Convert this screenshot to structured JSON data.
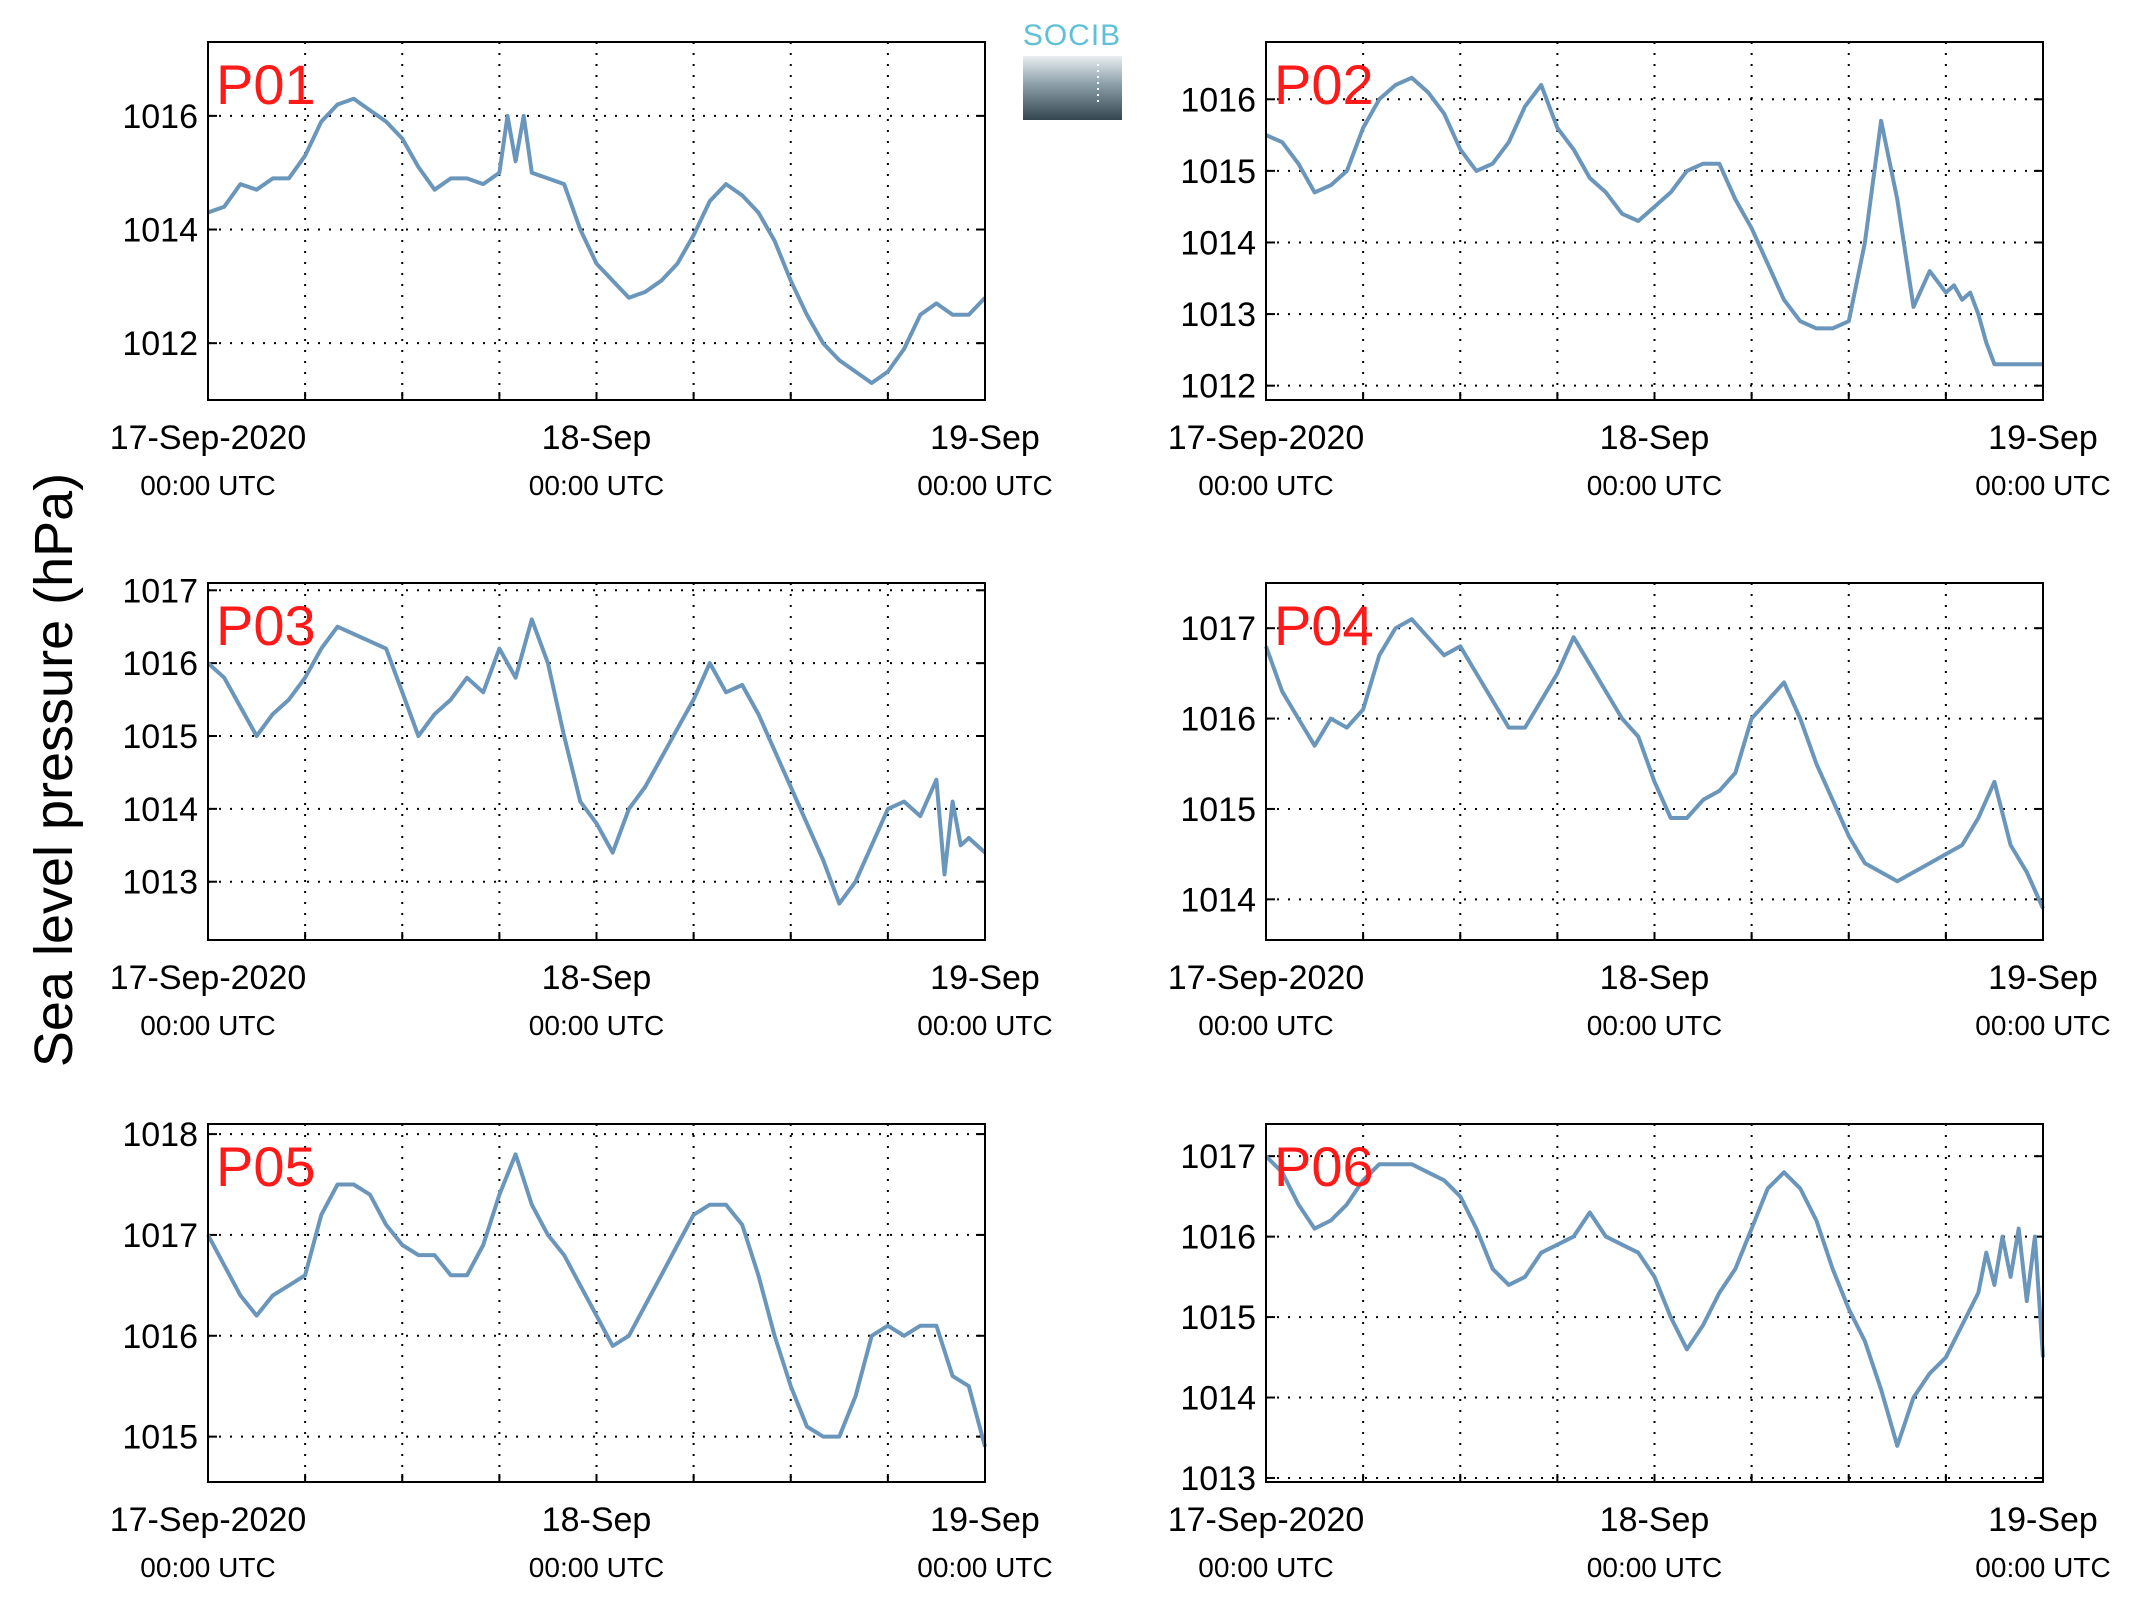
{
  "figure": {
    "ylabel": "Sea level pressure (hPa)",
    "logo_text": "SOCIB",
    "line_color": "#6b96bb",
    "label_color": "#ff1a1a"
  },
  "chart_data": [
    {
      "type": "line",
      "title": "P01",
      "x_ticks": [
        0,
        24,
        48
      ],
      "x_tick_labels": [
        [
          "17-Sep-2020",
          "00:00 UTC"
        ],
        [
          "18-Sep",
          "00:00 UTC"
        ],
        [
          "19-Sep",
          "00:00 UTC"
        ]
      ],
      "xlim": [
        0,
        48
      ],
      "ylim": [
        1011,
        1017.3
      ],
      "yticks": [
        1012,
        1014,
        1016
      ],
      "series": [
        {
          "x": [
            0,
            1,
            2,
            3,
            4,
            5,
            6,
            7,
            8,
            9,
            10,
            11,
            12,
            13,
            14,
            15,
            16,
            17,
            18,
            18.5,
            19,
            19.5,
            20,
            21,
            22,
            23,
            24,
            25,
            26,
            27,
            28,
            29,
            30,
            31,
            32,
            33,
            34,
            35,
            36,
            37,
            38,
            39,
            40,
            41,
            42,
            43,
            44,
            45,
            46,
            47,
            48
          ],
          "values": [
            1014.3,
            1014.4,
            1014.8,
            1014.7,
            1014.9,
            1014.9,
            1015.3,
            1015.9,
            1016.2,
            1016.3,
            1016.1,
            1015.9,
            1015.6,
            1015.1,
            1014.7,
            1014.9,
            1014.9,
            1014.8,
            1015.0,
            1016.0,
            1015.2,
            1016.0,
            1015.0,
            1014.9,
            1014.8,
            1014.0,
            1013.4,
            1013.1,
            1012.8,
            1012.9,
            1013.1,
            1013.4,
            1013.9,
            1014.5,
            1014.8,
            1014.6,
            1014.3,
            1013.8,
            1013.1,
            1012.5,
            1012.0,
            1011.7,
            1011.5,
            1011.3,
            1011.5,
            1011.9,
            1012.5,
            1012.7,
            1012.5,
            1012.5,
            1012.8
          ]
        }
      ]
    },
    {
      "type": "line",
      "title": "P02",
      "x_ticks": [
        0,
        24,
        48
      ],
      "x_tick_labels": [
        [
          "17-Sep-2020",
          "00:00 UTC"
        ],
        [
          "18-Sep",
          "00:00 UTC"
        ],
        [
          "19-Sep",
          "00:00 UTC"
        ]
      ],
      "xlim": [
        0,
        48
      ],
      "ylim": [
        1011.8,
        1016.8
      ],
      "yticks": [
        1012,
        1013,
        1014,
        1015,
        1016
      ],
      "series": [
        {
          "x": [
            0,
            1,
            2,
            3,
            4,
            5,
            6,
            7,
            8,
            9,
            10,
            11,
            12,
            13,
            14,
            15,
            16,
            17,
            18,
            19,
            20,
            21,
            22,
            23,
            24,
            25,
            26,
            27,
            28,
            29,
            30,
            31,
            32,
            33,
            34,
            35,
            36,
            37,
            38,
            39,
            40,
            41,
            42,
            42.5,
            43,
            43.5,
            44,
            44.5,
            45,
            45.5,
            46,
            46.5,
            47,
            47.5,
            48
          ],
          "values": [
            1015.5,
            1015.4,
            1015.1,
            1014.7,
            1014.8,
            1015.0,
            1015.6,
            1016.0,
            1016.2,
            1016.3,
            1016.1,
            1015.8,
            1015.3,
            1015.0,
            1015.1,
            1015.4,
            1015.9,
            1016.2,
            1015.6,
            1015.3,
            1014.9,
            1014.7,
            1014.4,
            1014.3,
            1014.5,
            1014.7,
            1015.0,
            1015.1,
            1015.1,
            1014.6,
            1014.2,
            1013.7,
            1013.2,
            1012.9,
            1012.8,
            1012.8,
            1012.9,
            1014.0,
            1015.7,
            1014.6,
            1013.1,
            1013.6,
            1013.3,
            1013.4,
            1013.2,
            1013.3,
            1013.0,
            1012.6,
            1012.3,
            1012.3,
            1012.3,
            1012.3,
            1012.3,
            1012.3,
            1012.3
          ]
        }
      ]
    },
    {
      "type": "line",
      "title": "P03",
      "x_ticks": [
        0,
        24,
        48
      ],
      "x_tick_labels": [
        [
          "17-Sep-2020",
          "00:00 UTC"
        ],
        [
          "18-Sep",
          "00:00 UTC"
        ],
        [
          "19-Sep",
          "00:00 UTC"
        ]
      ],
      "xlim": [
        0,
        48
      ],
      "ylim": [
        1012.2,
        1017.1
      ],
      "yticks": [
        1013,
        1014,
        1015,
        1016,
        1017
      ],
      "series": [
        {
          "x": [
            0,
            1,
            2,
            3,
            4,
            5,
            6,
            7,
            8,
            9,
            10,
            11,
            12,
            13,
            14,
            15,
            16,
            17,
            18,
            19,
            20,
            21,
            22,
            23,
            24,
            25,
            26,
            27,
            28,
            29,
            30,
            31,
            32,
            33,
            34,
            35,
            36,
            37,
            38,
            39,
            40,
            41,
            42,
            43,
            44,
            45,
            45.5,
            46,
            46.5,
            47,
            48
          ],
          "values": [
            1016.0,
            1015.8,
            1015.4,
            1015.0,
            1015.3,
            1015.5,
            1015.8,
            1016.2,
            1016.5,
            1016.4,
            1016.3,
            1016.2,
            1015.6,
            1015.0,
            1015.3,
            1015.5,
            1015.8,
            1015.6,
            1016.2,
            1015.8,
            1016.6,
            1016.0,
            1015.0,
            1014.1,
            1013.8,
            1013.4,
            1014.0,
            1014.3,
            1014.7,
            1015.1,
            1015.5,
            1016.0,
            1015.6,
            1015.7,
            1015.3,
            1014.8,
            1014.3,
            1013.8,
            1013.3,
            1012.7,
            1013.0,
            1013.5,
            1014.0,
            1014.1,
            1013.9,
            1014.4,
            1013.1,
            1014.1,
            1013.5,
            1013.6,
            1013.4
          ]
        }
      ]
    },
    {
      "type": "line",
      "title": "P04",
      "x_ticks": [
        0,
        24,
        48
      ],
      "x_tick_labels": [
        [
          "17-Sep-2020",
          "00:00 UTC"
        ],
        [
          "18-Sep",
          "00:00 UTC"
        ],
        [
          "19-Sep",
          "00:00 UTC"
        ]
      ],
      "xlim": [
        0,
        48
      ],
      "ylim": [
        1013.55,
        1017.5
      ],
      "yticks": [
        1014,
        1015,
        1016,
        1017
      ],
      "series": [
        {
          "x": [
            0,
            1,
            2,
            3,
            4,
            5,
            6,
            7,
            8,
            9,
            10,
            11,
            12,
            13,
            14,
            15,
            16,
            17,
            18,
            19,
            20,
            21,
            22,
            23,
            24,
            25,
            26,
            27,
            28,
            29,
            30,
            31,
            32,
            33,
            34,
            35,
            36,
            37,
            38,
            39,
            40,
            41,
            42,
            43,
            44,
            45,
            46,
            47,
            48
          ],
          "values": [
            1016.8,
            1016.3,
            1016.0,
            1015.7,
            1016.0,
            1015.9,
            1016.1,
            1016.7,
            1017.0,
            1017.1,
            1016.9,
            1016.7,
            1016.8,
            1016.5,
            1016.2,
            1015.9,
            1015.9,
            1016.2,
            1016.5,
            1016.9,
            1016.6,
            1016.3,
            1016.0,
            1015.8,
            1015.3,
            1014.9,
            1014.9,
            1015.1,
            1015.2,
            1015.4,
            1016.0,
            1016.2,
            1016.4,
            1016.0,
            1015.5,
            1015.1,
            1014.7,
            1014.4,
            1014.3,
            1014.2,
            1014.3,
            1014.4,
            1014.5,
            1014.6,
            1014.9,
            1015.3,
            1014.6,
            1014.3,
            1013.9
          ]
        }
      ]
    },
    {
      "type": "line",
      "title": "P05",
      "x_ticks": [
        0,
        24,
        48
      ],
      "x_tick_labels": [
        [
          "17-Sep-2020",
          "00:00 UTC"
        ],
        [
          "18-Sep",
          "00:00 UTC"
        ],
        [
          "19-Sep",
          "00:00 UTC"
        ]
      ],
      "xlim": [
        0,
        48
      ],
      "ylim": [
        1014.55,
        1018.1
      ],
      "yticks": [
        1015,
        1016,
        1017,
        1018
      ],
      "series": [
        {
          "x": [
            0,
            1,
            2,
            3,
            4,
            5,
            6,
            7,
            8,
            9,
            10,
            11,
            12,
            13,
            14,
            15,
            16,
            17,
            18,
            19,
            20,
            21,
            22,
            23,
            24,
            25,
            26,
            27,
            28,
            29,
            30,
            31,
            32,
            33,
            34,
            35,
            36,
            37,
            38,
            39,
            40,
            41,
            42,
            43,
            44,
            45,
            46,
            47,
            48
          ],
          "values": [
            1017.0,
            1016.7,
            1016.4,
            1016.2,
            1016.4,
            1016.5,
            1016.6,
            1017.2,
            1017.5,
            1017.5,
            1017.4,
            1017.1,
            1016.9,
            1016.8,
            1016.8,
            1016.6,
            1016.6,
            1016.9,
            1017.4,
            1017.8,
            1017.3,
            1017.0,
            1016.8,
            1016.5,
            1016.2,
            1015.9,
            1016.0,
            1016.3,
            1016.6,
            1016.9,
            1017.2,
            1017.3,
            1017.3,
            1017.1,
            1016.6,
            1016.0,
            1015.5,
            1015.1,
            1015.0,
            1015.0,
            1015.4,
            1016.0,
            1016.1,
            1016.0,
            1016.1,
            1016.1,
            1015.6,
            1015.5,
            1014.9
          ]
        }
      ]
    },
    {
      "type": "line",
      "title": "P06",
      "x_ticks": [
        0,
        24,
        48
      ],
      "x_tick_labels": [
        [
          "17-Sep-2020",
          "00:00 UTC"
        ],
        [
          "18-Sep",
          "00:00 UTC"
        ],
        [
          "19-Sep",
          "00:00 UTC"
        ]
      ],
      "xlim": [
        0,
        48
      ],
      "ylim": [
        1012.95,
        1017.4
      ],
      "yticks": [
        1013,
        1014,
        1015,
        1016,
        1017
      ],
      "series": [
        {
          "x": [
            0,
            1,
            2,
            3,
            4,
            5,
            6,
            7,
            8,
            9,
            10,
            11,
            12,
            13,
            14,
            15,
            16,
            17,
            18,
            19,
            20,
            21,
            22,
            23,
            24,
            25,
            26,
            27,
            28,
            29,
            30,
            31,
            32,
            33,
            34,
            35,
            36,
            37,
            38,
            39,
            40,
            41,
            42,
            43,
            44,
            44.5,
            45,
            45.5,
            46,
            46.5,
            47,
            47.5,
            48
          ],
          "values": [
            1017.0,
            1016.8,
            1016.4,
            1016.1,
            1016.2,
            1016.4,
            1016.7,
            1016.9,
            1016.9,
            1016.9,
            1016.8,
            1016.7,
            1016.5,
            1016.1,
            1015.6,
            1015.4,
            1015.5,
            1015.8,
            1015.9,
            1016.0,
            1016.3,
            1016.0,
            1015.9,
            1015.8,
            1015.5,
            1015.0,
            1014.6,
            1014.9,
            1015.3,
            1015.6,
            1016.1,
            1016.6,
            1016.8,
            1016.6,
            1016.2,
            1015.6,
            1015.1,
            1014.7,
            1014.1,
            1013.4,
            1014.0,
            1014.3,
            1014.5,
            1014.9,
            1015.3,
            1015.8,
            1015.4,
            1016.0,
            1015.5,
            1016.1,
            1015.2,
            1016.0,
            1014.5
          ]
        }
      ]
    }
  ]
}
